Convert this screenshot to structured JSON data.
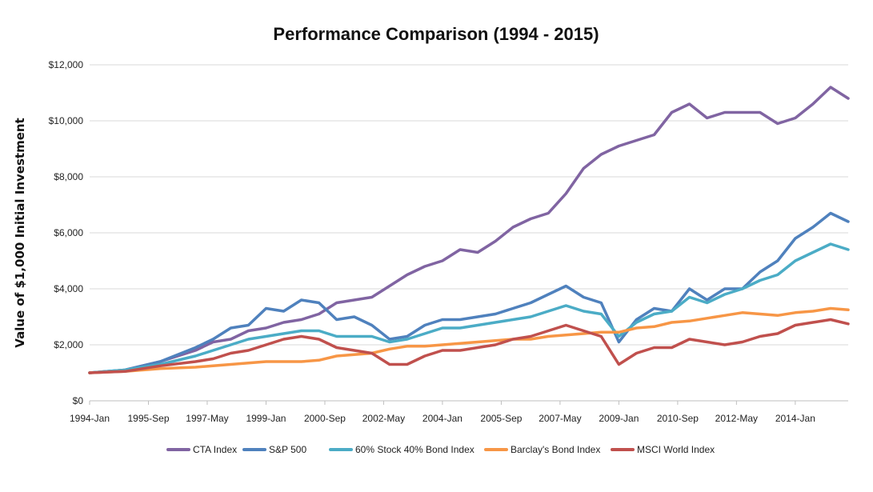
{
  "chart_data": {
    "type": "line",
    "title": "Performance Comparison (1994 - 2015)",
    "xlabel": "",
    "ylabel": "Value of $1,000 Initial Investment",
    "ylim": [
      0,
      12000
    ],
    "y_ticks": [
      0,
      2000,
      4000,
      6000,
      8000,
      10000,
      12000
    ],
    "y_tick_labels": [
      "$0",
      "$2,000",
      "$4,000",
      "$6,000",
      "$8,000",
      "$10,000",
      "$12,000"
    ],
    "x_ticks": [
      "1994-Jan",
      "1995-Sep",
      "1997-May",
      "1999-Jan",
      "2000-Sep",
      "2002-May",
      "2004-Jan",
      "2005-Sep",
      "2007-May",
      "2009-Jan",
      "2010-Sep",
      "2012-May",
      "2014-Jan"
    ],
    "x_tick_years": [
      1994.0,
      1995.667,
      1997.333,
      1999.0,
      2000.667,
      2002.333,
      2004.0,
      2005.667,
      2007.333,
      2009.0,
      2010.667,
      2012.333,
      2014.0
    ],
    "xlim": [
      1994.0,
      2015.5
    ],
    "grid": true,
    "legend_position": "bottom",
    "series": [
      {
        "name": "CTA Index",
        "color": "#8064a2",
        "x": [
          1994.0,
          1995.0,
          1996.0,
          1997.0,
          1997.5,
          1998.0,
          1998.5,
          1999.0,
          1999.5,
          2000.0,
          2000.5,
          2001.0,
          2001.5,
          2002.0,
          2002.5,
          2003.0,
          2003.5,
          2004.0,
          2004.5,
          2005.0,
          2005.5,
          2006.0,
          2006.5,
          2007.0,
          2007.5,
          2008.0,
          2008.5,
          2009.0,
          2009.5,
          2010.0,
          2010.5,
          2011.0,
          2011.5,
          2012.0,
          2012.5,
          2013.0,
          2013.5,
          2014.0,
          2014.5,
          2015.0,
          2015.5
        ],
        "y": [
          1000,
          1100,
          1400,
          1800,
          2100,
          2200,
          2500,
          2600,
          2800,
          2900,
          3100,
          3500,
          3600,
          3700,
          4100,
          4500,
          4800,
          5000,
          5400,
          5300,
          5700,
          6200,
          6500,
          6700,
          7400,
          8300,
          8800,
          9100,
          9300,
          9500,
          10300,
          10600,
          10100,
          10300,
          10300,
          10300,
          9900,
          10100,
          10600,
          11200,
          10800
        ]
      },
      {
        "name": "S&P 500",
        "color": "#4f81bd",
        "x": [
          1994.0,
          1995.0,
          1996.0,
          1997.0,
          1997.5,
          1998.0,
          1998.5,
          1999.0,
          1999.5,
          2000.0,
          2000.5,
          2001.0,
          2001.5,
          2002.0,
          2002.5,
          2003.0,
          2003.5,
          2004.0,
          2004.5,
          2005.0,
          2005.5,
          2006.0,
          2006.5,
          2007.0,
          2007.5,
          2008.0,
          2008.5,
          2009.0,
          2009.5,
          2010.0,
          2010.5,
          2011.0,
          2011.5,
          2012.0,
          2012.5,
          2013.0,
          2013.5,
          2014.0,
          2014.5,
          2015.0,
          2015.5
        ],
        "y": [
          1000,
          1100,
          1400,
          1900,
          2200,
          2600,
          2700,
          3300,
          3200,
          3600,
          3500,
          2900,
          3000,
          2700,
          2200,
          2300,
          2700,
          2900,
          2900,
          3000,
          3100,
          3300,
          3500,
          3800,
          4100,
          3700,
          3500,
          2100,
          2900,
          3300,
          3200,
          4000,
          3600,
          4000,
          4000,
          4600,
          5000,
          5800,
          6200,
          6700,
          6400
        ]
      },
      {
        "name": "60% Stock 40% Bond Index",
        "color": "#4bacc6",
        "x": [
          1994.0,
          1995.0,
          1996.0,
          1997.0,
          1997.5,
          1998.0,
          1998.5,
          1999.0,
          1999.5,
          2000.0,
          2000.5,
          2001.0,
          2001.5,
          2002.0,
          2002.5,
          2003.0,
          2003.5,
          2004.0,
          2004.5,
          2005.0,
          2005.5,
          2006.0,
          2006.5,
          2007.0,
          2007.5,
          2008.0,
          2008.5,
          2009.0,
          2009.5,
          2010.0,
          2010.5,
          2011.0,
          2011.5,
          2012.0,
          2012.5,
          2013.0,
          2013.5,
          2014.0,
          2014.5,
          2015.0,
          2015.5
        ],
        "y": [
          1000,
          1100,
          1300,
          1600,
          1800,
          2000,
          2200,
          2300,
          2400,
          2500,
          2500,
          2300,
          2300,
          2300,
          2100,
          2200,
          2400,
          2600,
          2600,
          2700,
          2800,
          2900,
          3000,
          3200,
          3400,
          3200,
          3100,
          2300,
          2800,
          3100,
          3200,
          3700,
          3500,
          3800,
          4000,
          4300,
          4500,
          5000,
          5300,
          5600,
          5400
        ]
      },
      {
        "name": "Barclay's Bond Index",
        "color": "#f79646",
        "x": [
          1994.0,
          1995.0,
          1996.0,
          1997.0,
          1997.5,
          1998.0,
          1998.5,
          1999.0,
          1999.5,
          2000.0,
          2000.5,
          2001.0,
          2001.5,
          2002.0,
          2002.5,
          2003.0,
          2003.5,
          2004.0,
          2004.5,
          2005.0,
          2005.5,
          2006.0,
          2006.5,
          2007.0,
          2007.5,
          2008.0,
          2008.5,
          2009.0,
          2009.5,
          2010.0,
          2010.5,
          2011.0,
          2011.5,
          2012.0,
          2012.5,
          2013.0,
          2013.5,
          2014.0,
          2014.5,
          2015.0,
          2015.5
        ],
        "y": [
          1000,
          1050,
          1150,
          1200,
          1250,
          1300,
          1350,
          1400,
          1400,
          1400,
          1450,
          1600,
          1650,
          1700,
          1850,
          1950,
          1950,
          2000,
          2050,
          2100,
          2150,
          2200,
          2200,
          2300,
          2350,
          2400,
          2450,
          2450,
          2600,
          2650,
          2800,
          2850,
          2950,
          3050,
          3150,
          3100,
          3050,
          3150,
          3200,
          3300,
          3250
        ]
      },
      {
        "name": "MSCI World Index",
        "color": "#c0504d",
        "x": [
          1994.0,
          1995.0,
          1996.0,
          1997.0,
          1997.5,
          1998.0,
          1998.5,
          1999.0,
          1999.5,
          2000.0,
          2000.5,
          2001.0,
          2001.5,
          2002.0,
          2002.5,
          2003.0,
          2003.5,
          2004.0,
          2004.5,
          2005.0,
          2005.5,
          2006.0,
          2006.5,
          2007.0,
          2007.5,
          2008.0,
          2008.5,
          2009.0,
          2009.5,
          2010.0,
          2010.5,
          2011.0,
          2011.5,
          2012.0,
          2012.5,
          2013.0,
          2013.5,
          2014.0,
          2014.5,
          2015.0,
          2015.5
        ],
        "y": [
          1000,
          1050,
          1250,
          1400,
          1500,
          1700,
          1800,
          2000,
          2200,
          2300,
          2200,
          1900,
          1800,
          1700,
          1300,
          1300,
          1600,
          1800,
          1800,
          1900,
          2000,
          2200,
          2300,
          2500,
          2700,
          2500,
          2300,
          1300,
          1700,
          1900,
          1900,
          2200,
          2100,
          2000,
          2100,
          2300,
          2400,
          2700,
          2800,
          2900,
          2750
        ]
      }
    ]
  }
}
